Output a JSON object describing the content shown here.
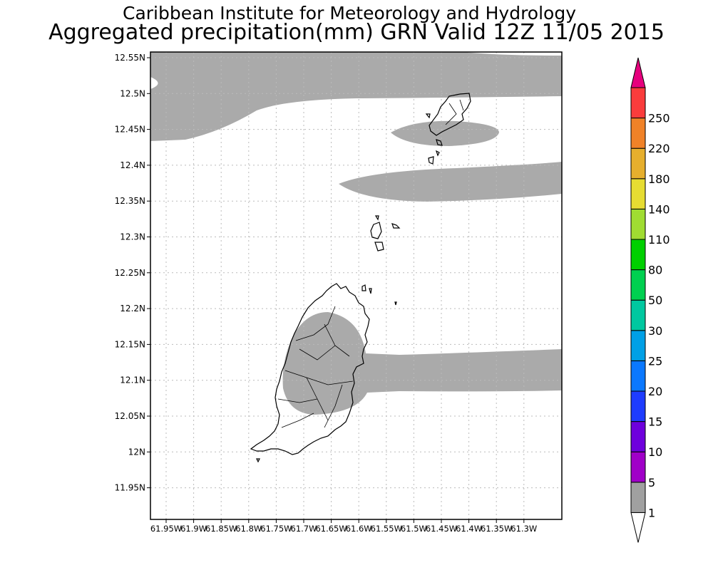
{
  "header": {
    "title_line1": "Caribbean Institute for Meteorology and Hydrology",
    "title_line2": "Aggregated precipitation(mm) GRN Valid 12Z 11/05 2015"
  },
  "axes": {
    "y_labels": [
      "12.55N",
      "12.5N",
      "12.45N",
      "12.4N",
      "12.35N",
      "12.3N",
      "12.25N",
      "12.2N",
      "12.15N",
      "12.1N",
      "12.05N",
      "12N",
      "11.95N"
    ],
    "x_labels": [
      "61.95W",
      "61.9W",
      "61.85W",
      "61.8W",
      "61.75W",
      "61.7W",
      "61.65W",
      "61.6W",
      "61.55W",
      "61.5W",
      "61.45W",
      "61.4W",
      "61.35W",
      "61.3W"
    ]
  },
  "colorbar": {
    "labels": [
      "1",
      "5",
      "10",
      "15",
      "20",
      "25",
      "30",
      "50",
      "80",
      "110",
      "140",
      "180",
      "220",
      "250"
    ],
    "colors": [
      "#a0a0a0",
      "#a000c8",
      "#6e00dc",
      "#1e3cff",
      "#0a78ff",
      "#00a0e6",
      "#00c8a0",
      "#00d050",
      "#00d000",
      "#a0dc32",
      "#e6dc32",
      "#e6af2d",
      "#f08228",
      "#fa3c3c",
      "#e6007d"
    ]
  },
  "precip_color": "#aaaaaa"
}
